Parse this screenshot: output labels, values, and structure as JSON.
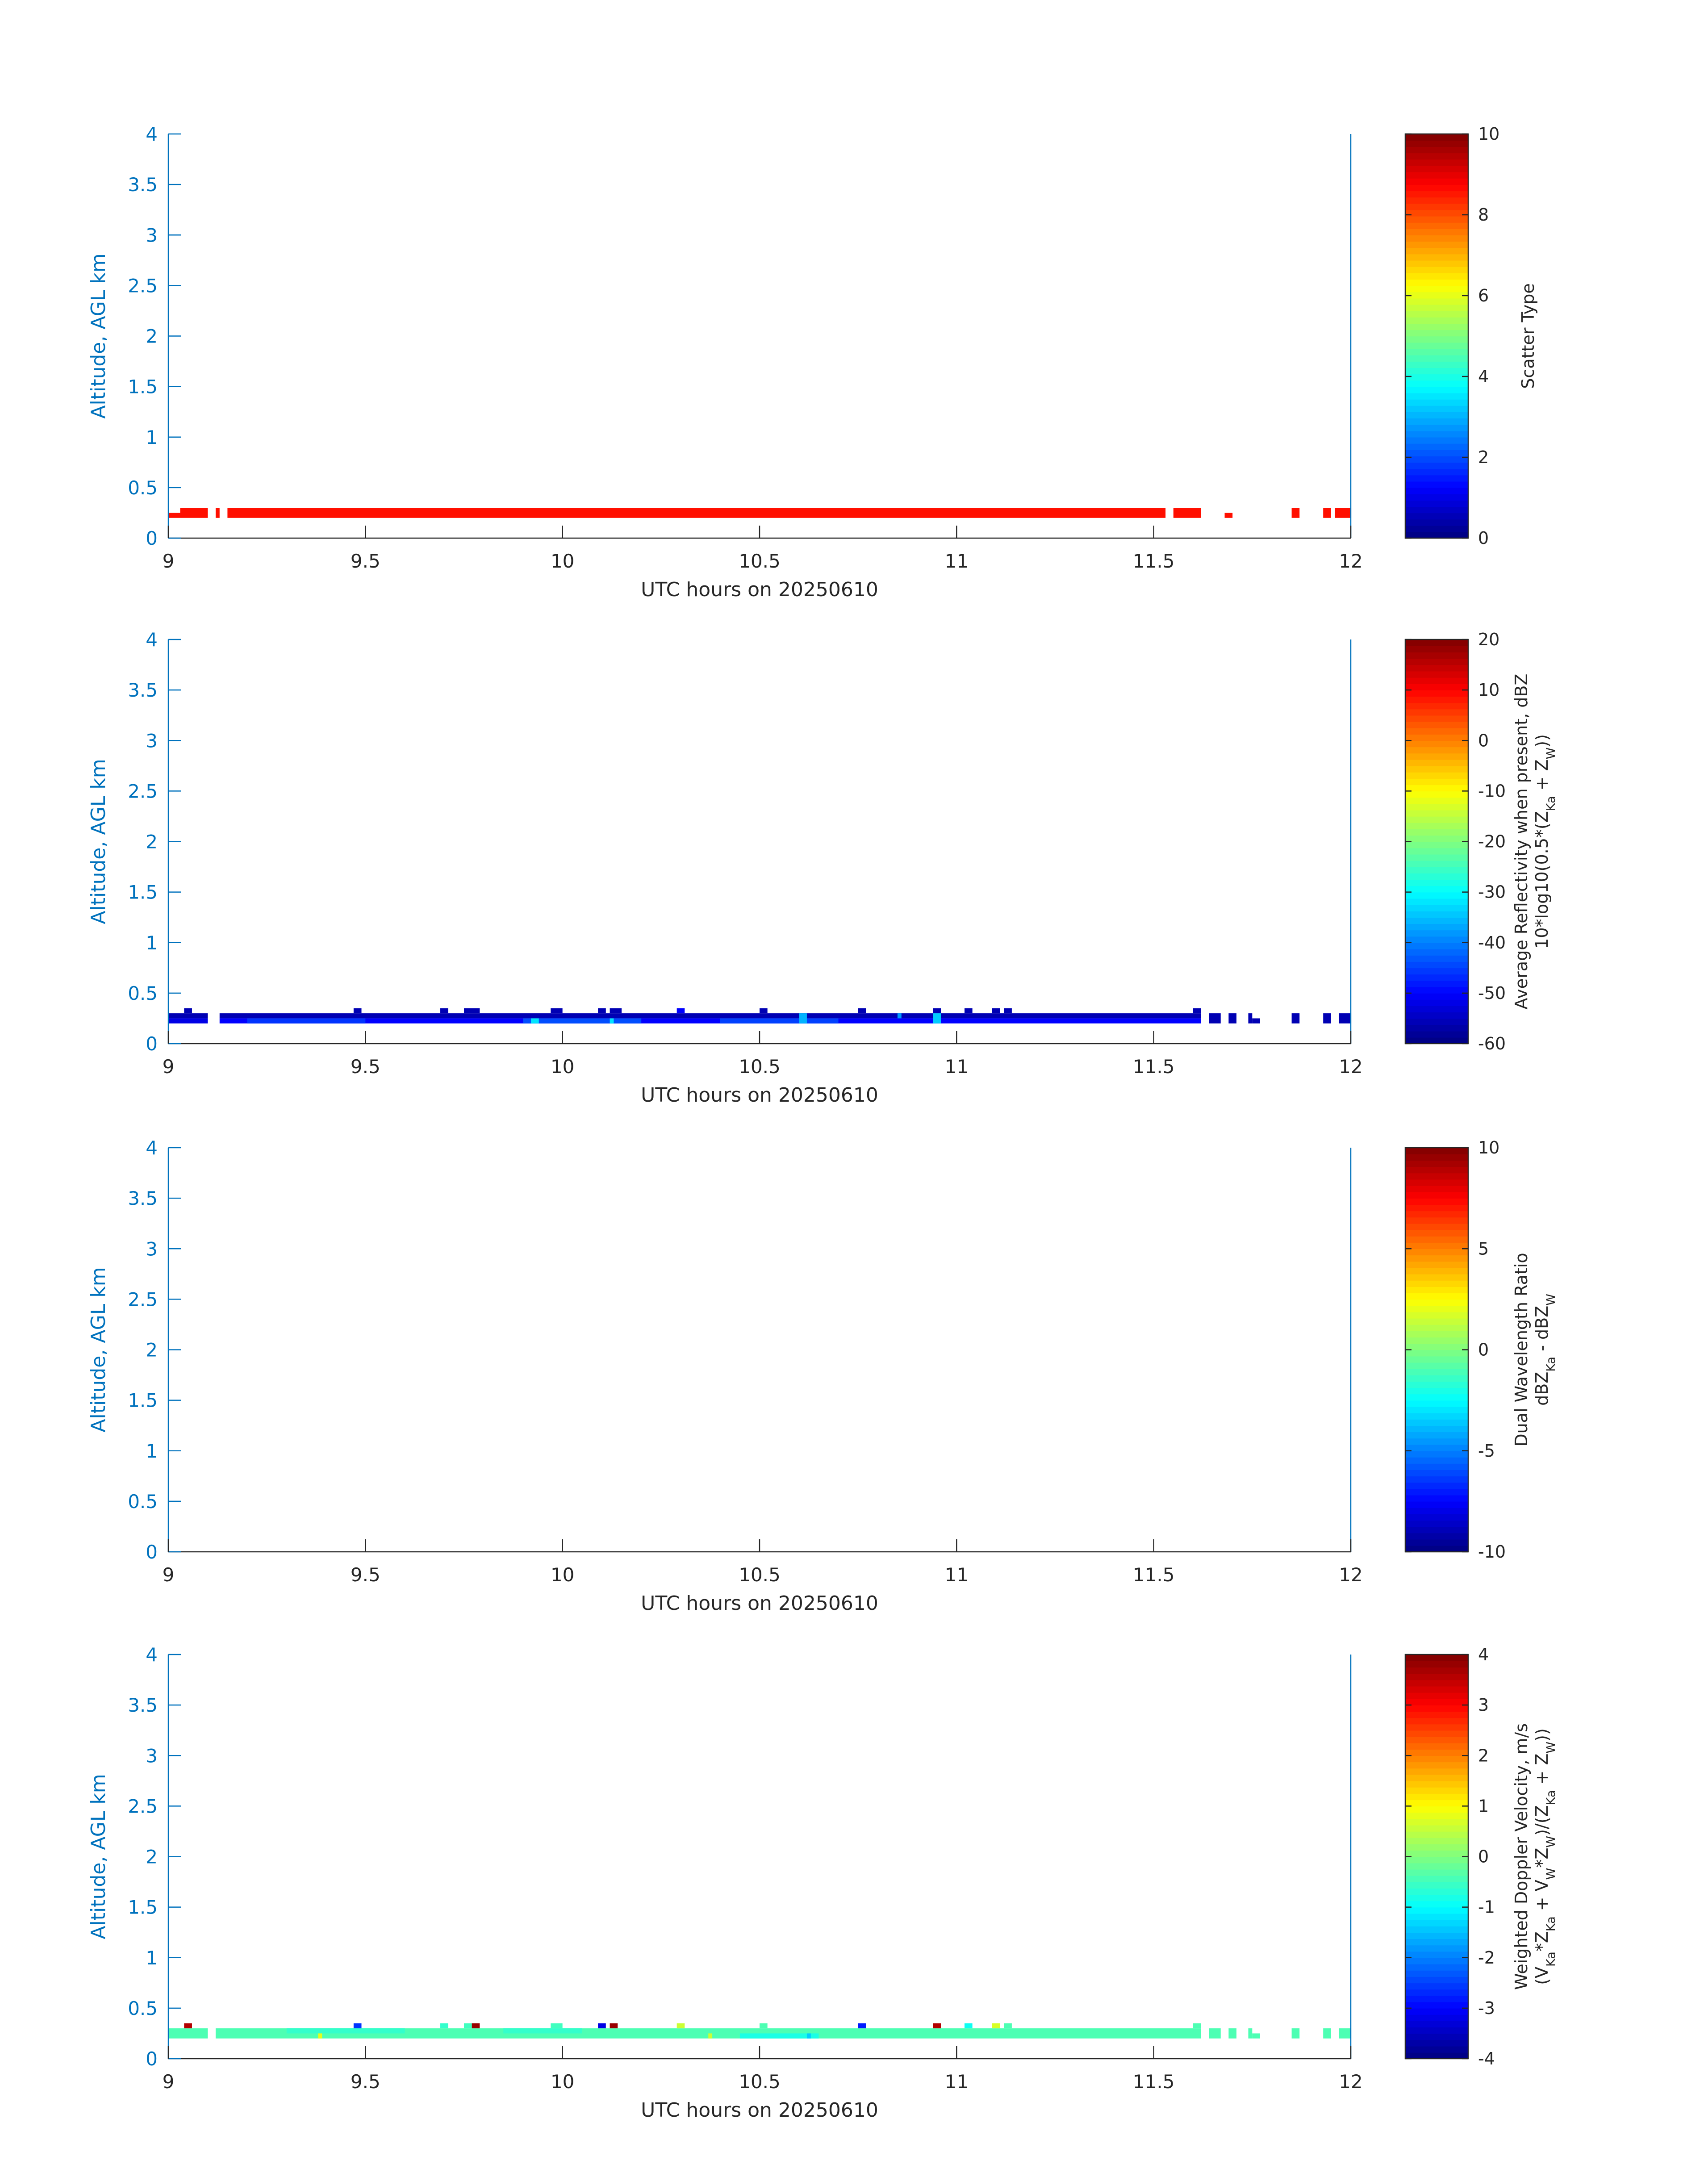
{
  "figure": {
    "panel_xlabel": "UTC hours on 20250610",
    "panel_ylabel": "Altitude, AGL km",
    "colors": {
      "axis_blue": "#0072BD",
      "axis_dark": "#262626"
    }
  },
  "chart_data": [
    {
      "type": "heatmap",
      "title": "",
      "xlabel": "UTC hours on 20250610",
      "ylabel": "Altitude, AGL km",
      "xlim": [
        9,
        12
      ],
      "ylim": [
        0,
        4
      ],
      "xticks": [
        "9",
        "9.5",
        "10",
        "10.5",
        "11",
        "11.5",
        "12"
      ],
      "yticks": [
        "0",
        "0.5",
        "1",
        "1.5",
        "2",
        "2.5",
        "3",
        "3.5",
        "4"
      ],
      "colorbar": {
        "label_lines": [
          "Scatter Type"
        ],
        "clim": [
          0,
          10
        ],
        "ticks": [
          "0",
          "2",
          "4",
          "6",
          "8",
          "10"
        ],
        "colormap": "jet"
      },
      "cells": [
        {
          "x0": 9.0,
          "x1": 9.03,
          "y0": 0.2,
          "y1": 0.25,
          "value": 8.6
        },
        {
          "x0": 9.03,
          "x1": 9.1,
          "y0": 0.2,
          "y1": 0.3,
          "value": 8.6
        },
        {
          "x0": 9.12,
          "x1": 9.13,
          "y0": 0.2,
          "y1": 0.3,
          "value": 8.6
        },
        {
          "x0": 9.15,
          "x1": 11.53,
          "y0": 0.2,
          "y1": 0.3,
          "value": 8.6
        },
        {
          "x0": 11.55,
          "x1": 11.62,
          "y0": 0.2,
          "y1": 0.3,
          "value": 8.6
        },
        {
          "x0": 11.68,
          "x1": 11.7,
          "y0": 0.2,
          "y1": 0.25,
          "value": 8.6
        },
        {
          "x0": 11.85,
          "x1": 11.87,
          "y0": 0.2,
          "y1": 0.3,
          "value": 8.6
        },
        {
          "x0": 11.93,
          "x1": 11.95,
          "y0": 0.2,
          "y1": 0.3,
          "value": 8.6
        },
        {
          "x0": 11.96,
          "x1": 12.0,
          "y0": 0.2,
          "y1": 0.3,
          "value": 8.6
        }
      ]
    },
    {
      "type": "heatmap",
      "title": "",
      "xlabel": "UTC hours on 20250610",
      "ylabel": "Altitude, AGL km",
      "xlim": [
        9,
        12
      ],
      "ylim": [
        0,
        4
      ],
      "xticks": [
        "9",
        "9.5",
        "10",
        "10.5",
        "11",
        "11.5",
        "12"
      ],
      "yticks": [
        "0",
        "0.5",
        "1",
        "1.5",
        "2",
        "2.5",
        "3",
        "3.5",
        "4"
      ],
      "colorbar": {
        "label_lines": [
          "Average Reflectivity when present, dBZ",
          "10*log10(0.5*(Z_Ka + Z_W))"
        ],
        "clim": [
          -60,
          20
        ],
        "ticks": [
          "-60",
          "-50",
          "-40",
          "-30",
          "-20",
          "-10",
          "0",
          "10",
          "20"
        ],
        "colormap": "jet"
      },
      "cells": [
        {
          "x0": 9.0,
          "x1": 9.1,
          "y0": 0.25,
          "y1": 0.3,
          "value": -56
        },
        {
          "x0": 9.0,
          "x1": 9.1,
          "y0": 0.2,
          "y1": 0.25,
          "value": -52
        },
        {
          "x0": 9.13,
          "x1": 11.62,
          "y0": 0.25,
          "y1": 0.3,
          "value": -56
        },
        {
          "x0": 9.13,
          "x1": 11.62,
          "y0": 0.2,
          "y1": 0.25,
          "value": -50
        },
        {
          "x0": 9.2,
          "x1": 9.5,
          "y0": 0.2,
          "y1": 0.25,
          "value": -46
        },
        {
          "x0": 9.9,
          "x1": 10.2,
          "y0": 0.2,
          "y1": 0.25,
          "value": -44
        },
        {
          "x0": 10.4,
          "x1": 10.7,
          "y0": 0.2,
          "y1": 0.25,
          "value": -45
        },
        {
          "x0": 9.04,
          "x1": 9.06,
          "y0": 0.3,
          "y1": 0.35,
          "value": -56
        },
        {
          "x0": 9.47,
          "x1": 9.49,
          "y0": 0.3,
          "y1": 0.35,
          "value": -56
        },
        {
          "x0": 9.69,
          "x1": 9.71,
          "y0": 0.3,
          "y1": 0.35,
          "value": -56
        },
        {
          "x0": 9.75,
          "x1": 9.79,
          "y0": 0.3,
          "y1": 0.35,
          "value": -56
        },
        {
          "x0": 9.97,
          "x1": 10.0,
          "y0": 0.3,
          "y1": 0.35,
          "value": -56
        },
        {
          "x0": 10.09,
          "x1": 10.11,
          "y0": 0.3,
          "y1": 0.35,
          "value": -56
        },
        {
          "x0": 10.12,
          "x1": 10.15,
          "y0": 0.3,
          "y1": 0.35,
          "value": -56
        },
        {
          "x0": 10.29,
          "x1": 10.31,
          "y0": 0.3,
          "y1": 0.35,
          "value": -50
        },
        {
          "x0": 10.5,
          "x1": 10.52,
          "y0": 0.3,
          "y1": 0.35,
          "value": -56
        },
        {
          "x0": 10.75,
          "x1": 10.77,
          "y0": 0.3,
          "y1": 0.35,
          "value": -56
        },
        {
          "x0": 10.94,
          "x1": 10.96,
          "y0": 0.3,
          "y1": 0.35,
          "value": -56
        },
        {
          "x0": 11.02,
          "x1": 11.04,
          "y0": 0.3,
          "y1": 0.35,
          "value": -56
        },
        {
          "x0": 11.09,
          "x1": 11.11,
          "y0": 0.3,
          "y1": 0.35,
          "value": -56
        },
        {
          "x0": 11.12,
          "x1": 11.14,
          "y0": 0.3,
          "y1": 0.35,
          "value": -56
        },
        {
          "x0": 11.6,
          "x1": 11.62,
          "y0": 0.3,
          "y1": 0.35,
          "value": -56
        },
        {
          "x0": 9.92,
          "x1": 9.94,
          "y0": 0.2,
          "y1": 0.25,
          "value": -32
        },
        {
          "x0": 10.12,
          "x1": 10.13,
          "y0": 0.2,
          "y1": 0.25,
          "value": -32
        },
        {
          "x0": 10.6,
          "x1": 10.62,
          "y0": 0.2,
          "y1": 0.3,
          "value": -36
        },
        {
          "x0": 10.94,
          "x1": 10.96,
          "y0": 0.2,
          "y1": 0.3,
          "value": -34
        },
        {
          "x0": 10.85,
          "x1": 10.86,
          "y0": 0.25,
          "y1": 0.3,
          "value": -38
        },
        {
          "x0": 11.64,
          "x1": 11.67,
          "y0": 0.2,
          "y1": 0.3,
          "value": -56
        },
        {
          "x0": 11.69,
          "x1": 11.71,
          "y0": 0.2,
          "y1": 0.3,
          "value": -56
        },
        {
          "x0": 11.74,
          "x1": 11.75,
          "y0": 0.2,
          "y1": 0.3,
          "value": -56
        },
        {
          "x0": 11.75,
          "x1": 11.77,
          "y0": 0.2,
          "y1": 0.25,
          "value": -56
        },
        {
          "x0": 11.85,
          "x1": 11.87,
          "y0": 0.2,
          "y1": 0.3,
          "value": -56
        },
        {
          "x0": 11.93,
          "x1": 11.95,
          "y0": 0.2,
          "y1": 0.3,
          "value": -56
        },
        {
          "x0": 11.97,
          "x1": 12.0,
          "y0": 0.2,
          "y1": 0.3,
          "value": -56
        }
      ]
    },
    {
      "type": "heatmap",
      "title": "",
      "xlabel": "UTC hours on 20250610",
      "ylabel": "Altitude, AGL km",
      "xlim": [
        9,
        12
      ],
      "ylim": [
        0,
        4
      ],
      "xticks": [
        "9",
        "9.5",
        "10",
        "10.5",
        "11",
        "11.5",
        "12"
      ],
      "yticks": [
        "0",
        "0.5",
        "1",
        "1.5",
        "2",
        "2.5",
        "3",
        "3.5",
        "4"
      ],
      "colorbar": {
        "label_lines": [
          "Dual Wavelength Ratio",
          "dBZ_Ka - dBZ_W"
        ],
        "clim": [
          -10,
          10
        ],
        "ticks": [
          "-10",
          "-5",
          "0",
          "5",
          "10"
        ],
        "colormap": "jet"
      },
      "cells": []
    },
    {
      "type": "heatmap",
      "title": "",
      "xlabel": "UTC hours on 20250610",
      "ylabel": "Altitude, AGL km",
      "xlim": [
        9,
        12
      ],
      "ylim": [
        0,
        4
      ],
      "xticks": [
        "9",
        "9.5",
        "10",
        "10.5",
        "11",
        "11.5",
        "12"
      ],
      "yticks": [
        "0",
        "0.5",
        "1",
        "1.5",
        "2",
        "2.5",
        "3",
        "3.5",
        "4"
      ],
      "colorbar": {
        "label_lines": [
          "Weighted Doppler Velocity, m/s",
          "(V_Ka*Z_Ka + V_W*Z_W)/(Z_Ka + Z_W))"
        ],
        "clim": [
          -4,
          4
        ],
        "ticks": [
          "-4",
          "-3",
          "-2",
          "-1",
          "0",
          "1",
          "2",
          "3",
          "4"
        ],
        "colormap": "jet"
      },
      "cells": [
        {
          "x0": 9.0,
          "x1": 9.1,
          "y0": 0.2,
          "y1": 0.3,
          "value": -0.4
        },
        {
          "x0": 9.12,
          "x1": 11.62,
          "y0": 0.2,
          "y1": 0.3,
          "value": -0.4
        },
        {
          "x0": 9.3,
          "x1": 9.6,
          "y0": 0.25,
          "y1": 0.3,
          "value": -0.6
        },
        {
          "x0": 9.85,
          "x1": 10.05,
          "y0": 0.25,
          "y1": 0.3,
          "value": -0.6
        },
        {
          "x0": 10.45,
          "x1": 10.65,
          "y0": 0.2,
          "y1": 0.25,
          "value": -0.8
        },
        {
          "x0": 10.62,
          "x1": 10.63,
          "y0": 0.2,
          "y1": 0.25,
          "value": -1.4
        },
        {
          "x0": 9.38,
          "x1": 9.39,
          "y0": 0.2,
          "y1": 0.25,
          "value": 0.8
        },
        {
          "x0": 10.37,
          "x1": 10.38,
          "y0": 0.2,
          "y1": 0.25,
          "value": 0.6
        },
        {
          "x0": 9.04,
          "x1": 9.06,
          "y0": 0.3,
          "y1": 0.35,
          "value": 3.6
        },
        {
          "x0": 9.47,
          "x1": 9.49,
          "y0": 0.3,
          "y1": 0.35,
          "value": -2.6
        },
        {
          "x0": 9.69,
          "x1": 9.71,
          "y0": 0.3,
          "y1": 0.35,
          "value": -0.6
        },
        {
          "x0": 9.75,
          "x1": 9.77,
          "y0": 0.3,
          "y1": 0.35,
          "value": -0.5
        },
        {
          "x0": 9.77,
          "x1": 9.79,
          "y0": 0.3,
          "y1": 0.35,
          "value": 3.8
        },
        {
          "x0": 9.97,
          "x1": 10.0,
          "y0": 0.3,
          "y1": 0.35,
          "value": -0.5
        },
        {
          "x0": 10.09,
          "x1": 10.11,
          "y0": 0.3,
          "y1": 0.35,
          "value": -3.2
        },
        {
          "x0": 10.12,
          "x1": 10.14,
          "y0": 0.3,
          "y1": 0.35,
          "value": 3.8
        },
        {
          "x0": 10.29,
          "x1": 10.31,
          "y0": 0.3,
          "y1": 0.35,
          "value": 0.6
        },
        {
          "x0": 10.5,
          "x1": 10.52,
          "y0": 0.3,
          "y1": 0.35,
          "value": -0.4
        },
        {
          "x0": 10.75,
          "x1": 10.77,
          "y0": 0.3,
          "y1": 0.35,
          "value": -2.8
        },
        {
          "x0": 10.94,
          "x1": 10.96,
          "y0": 0.3,
          "y1": 0.35,
          "value": 3.6
        },
        {
          "x0": 11.02,
          "x1": 11.04,
          "y0": 0.3,
          "y1": 0.35,
          "value": -0.9
        },
        {
          "x0": 11.09,
          "x1": 11.11,
          "y0": 0.3,
          "y1": 0.35,
          "value": 0.7
        },
        {
          "x0": 11.12,
          "x1": 11.14,
          "y0": 0.3,
          "y1": 0.35,
          "value": -0.4
        },
        {
          "x0": 11.6,
          "x1": 11.62,
          "y0": 0.3,
          "y1": 0.35,
          "value": -0.4
        },
        {
          "x0": 11.64,
          "x1": 11.67,
          "y0": 0.2,
          "y1": 0.3,
          "value": -0.4
        },
        {
          "x0": 11.69,
          "x1": 11.71,
          "y0": 0.2,
          "y1": 0.3,
          "value": -0.4
        },
        {
          "x0": 11.74,
          "x1": 11.75,
          "y0": 0.2,
          "y1": 0.3,
          "value": -0.4
        },
        {
          "x0": 11.75,
          "x1": 11.77,
          "y0": 0.2,
          "y1": 0.25,
          "value": -0.4
        },
        {
          "x0": 11.85,
          "x1": 11.87,
          "y0": 0.2,
          "y1": 0.3,
          "value": -0.4
        },
        {
          "x0": 11.93,
          "x1": 11.95,
          "y0": 0.2,
          "y1": 0.3,
          "value": -0.4
        },
        {
          "x0": 11.97,
          "x1": 12.0,
          "y0": 0.2,
          "y1": 0.3,
          "value": -0.4
        }
      ]
    }
  ]
}
